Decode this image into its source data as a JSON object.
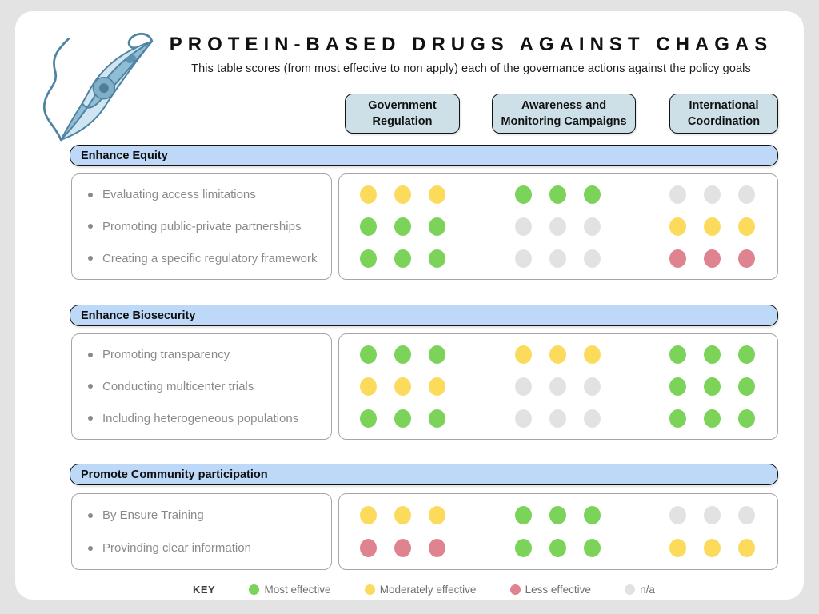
{
  "page": {
    "title": "PROTEIN-BASED DRUGS AGAINST CHAGAS",
    "subtitle": "This table scores (from most effective to non apply) each of the governance actions against the policy goals"
  },
  "legend": {
    "key_label": "KEY"
  },
  "chart_data": {
    "type": "table",
    "title": "PROTEIN-BASED DRUGS AGAINST CHAGAS",
    "columns": [
      "Government Regulation",
      "Awareness and Monitoring Campaigns",
      "International Coordination"
    ],
    "dots_per_score": 3,
    "rating_levels": [
      {
        "id": "green",
        "label": "Most effective",
        "color": "#7bd35a"
      },
      {
        "id": "yellow",
        "label": "Moderately effective",
        "color": "#fcdb5c"
      },
      {
        "id": "red",
        "label": "Less effective",
        "color": "#df8390"
      },
      {
        "id": "na",
        "label": "n/a",
        "color": "#e2e2e2"
      }
    ],
    "sections": [
      {
        "title": "Enhance Equity",
        "rows": [
          {
            "label": "Evaluating access limitations",
            "scores": [
              "yellow",
              "green",
              "na"
            ]
          },
          {
            "label": "Promoting public-private partnerships",
            "scores": [
              "green",
              "na",
              "yellow"
            ]
          },
          {
            "label": "Creating a specific regulatory framework",
            "scores": [
              "green",
              "na",
              "red"
            ]
          }
        ]
      },
      {
        "title": "Enhance Biosecurity",
        "rows": [
          {
            "label": "Promoting transparency",
            "scores": [
              "green",
              "yellow",
              "green"
            ]
          },
          {
            "label": "Conducting multicenter trials",
            "scores": [
              "yellow",
              "na",
              "green"
            ]
          },
          {
            "label": "Including heterogeneous populations",
            "scores": [
              "green",
              "na",
              "green"
            ]
          }
        ]
      },
      {
        "title": "Promote Community participation",
        "rows": [
          {
            "label": "By Ensure Training",
            "scores": [
              "yellow",
              "green",
              "na"
            ]
          },
          {
            "label": "Provinding clear information",
            "scores": [
              "red",
              "green",
              "yellow"
            ]
          }
        ]
      }
    ]
  },
  "colors": {
    "background": "#e3e3e3",
    "card": "#ffffff",
    "section_bar": "#bed8f8",
    "column_box": "#cde0e8"
  }
}
